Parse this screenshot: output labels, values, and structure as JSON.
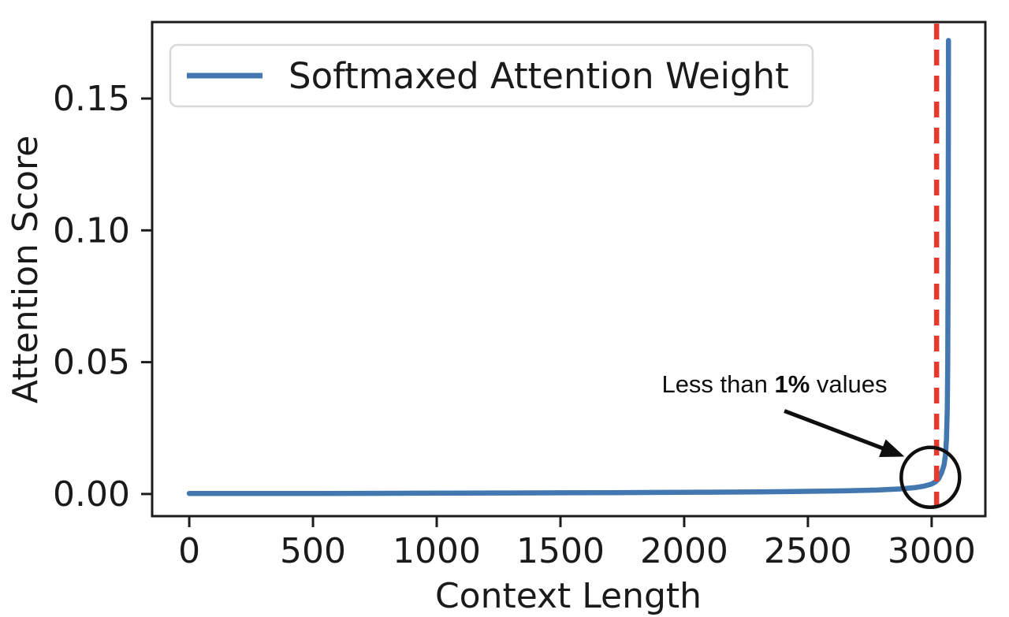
{
  "figure": {
    "background": "#ffffff",
    "axis_color": "#1c1c1c",
    "text_color": "#1a1a1a"
  },
  "chart_data": {
    "type": "line",
    "title": "",
    "xlabel": "Context Length",
    "ylabel": "Attention Score",
    "xlim": [
      -150,
      3217
    ],
    "ylim": [
      -0.0084,
      0.179
    ],
    "x_ticks": [
      0,
      500,
      1000,
      1500,
      2000,
      2500,
      3000
    ],
    "x_tick_labels": [
      "0",
      "500",
      "1000",
      "1500",
      "2000",
      "2500",
      "3000"
    ],
    "y_ticks": [
      0.0,
      0.05,
      0.1,
      0.15
    ],
    "y_tick_labels": [
      "0.00",
      "0.05",
      "0.10",
      "0.15"
    ],
    "grid": false,
    "legend": {
      "position": "upper left",
      "entries": [
        {
          "label": "Softmaxed Attention Weight",
          "color": "#4377b0"
        }
      ]
    },
    "series": [
      {
        "name": "Softmaxed Attention Weight",
        "color": "#4377b0",
        "line_width": 6.5,
        "points": [
          [
            0,
            0.0002
          ],
          [
            150,
            0.0002
          ],
          [
            300,
            0.0002
          ],
          [
            500,
            0.00022
          ],
          [
            700,
            0.00025
          ],
          [
            900,
            0.0003
          ],
          [
            1100,
            0.00035
          ],
          [
            1300,
            0.0004
          ],
          [
            1500,
            0.00045
          ],
          [
            1700,
            0.0005
          ],
          [
            1900,
            0.0006
          ],
          [
            2100,
            0.0007
          ],
          [
            2300,
            0.0008
          ],
          [
            2500,
            0.001
          ],
          [
            2650,
            0.0012
          ],
          [
            2780,
            0.0015
          ],
          [
            2870,
            0.0019
          ],
          [
            2930,
            0.0024
          ],
          [
            2970,
            0.003
          ],
          [
            3000,
            0.0038
          ],
          [
            3015,
            0.0046
          ],
          [
            3028,
            0.0058
          ],
          [
            3040,
            0.008
          ],
          [
            3050,
            0.011
          ],
          [
            3056,
            0.015
          ],
          [
            3060,
            0.021
          ],
          [
            3063,
            0.032
          ],
          [
            3065,
            0.05
          ],
          [
            3066,
            0.075
          ],
          [
            3067,
            0.11
          ],
          [
            3067.5,
            0.14
          ],
          [
            3068,
            0.172
          ]
        ]
      }
    ],
    "vline": {
      "x": 3020,
      "color": "#e8392d",
      "style": "dashed",
      "width": 6.5,
      "dash": [
        20,
        13
      ]
    },
    "annotation": {
      "text_prefix": "Less than ",
      "text_bold": "1%",
      "text_suffix": " values",
      "text_pos": [
        2365,
        0.0385
      ],
      "arrow_start": [
        2405,
        0.0315
      ],
      "arrow_end": [
        2890,
        0.0142
      ],
      "circle_center": [
        2995,
        0.0063
      ],
      "circle_radius_px": 37,
      "color": "#0f0f0f"
    }
  }
}
